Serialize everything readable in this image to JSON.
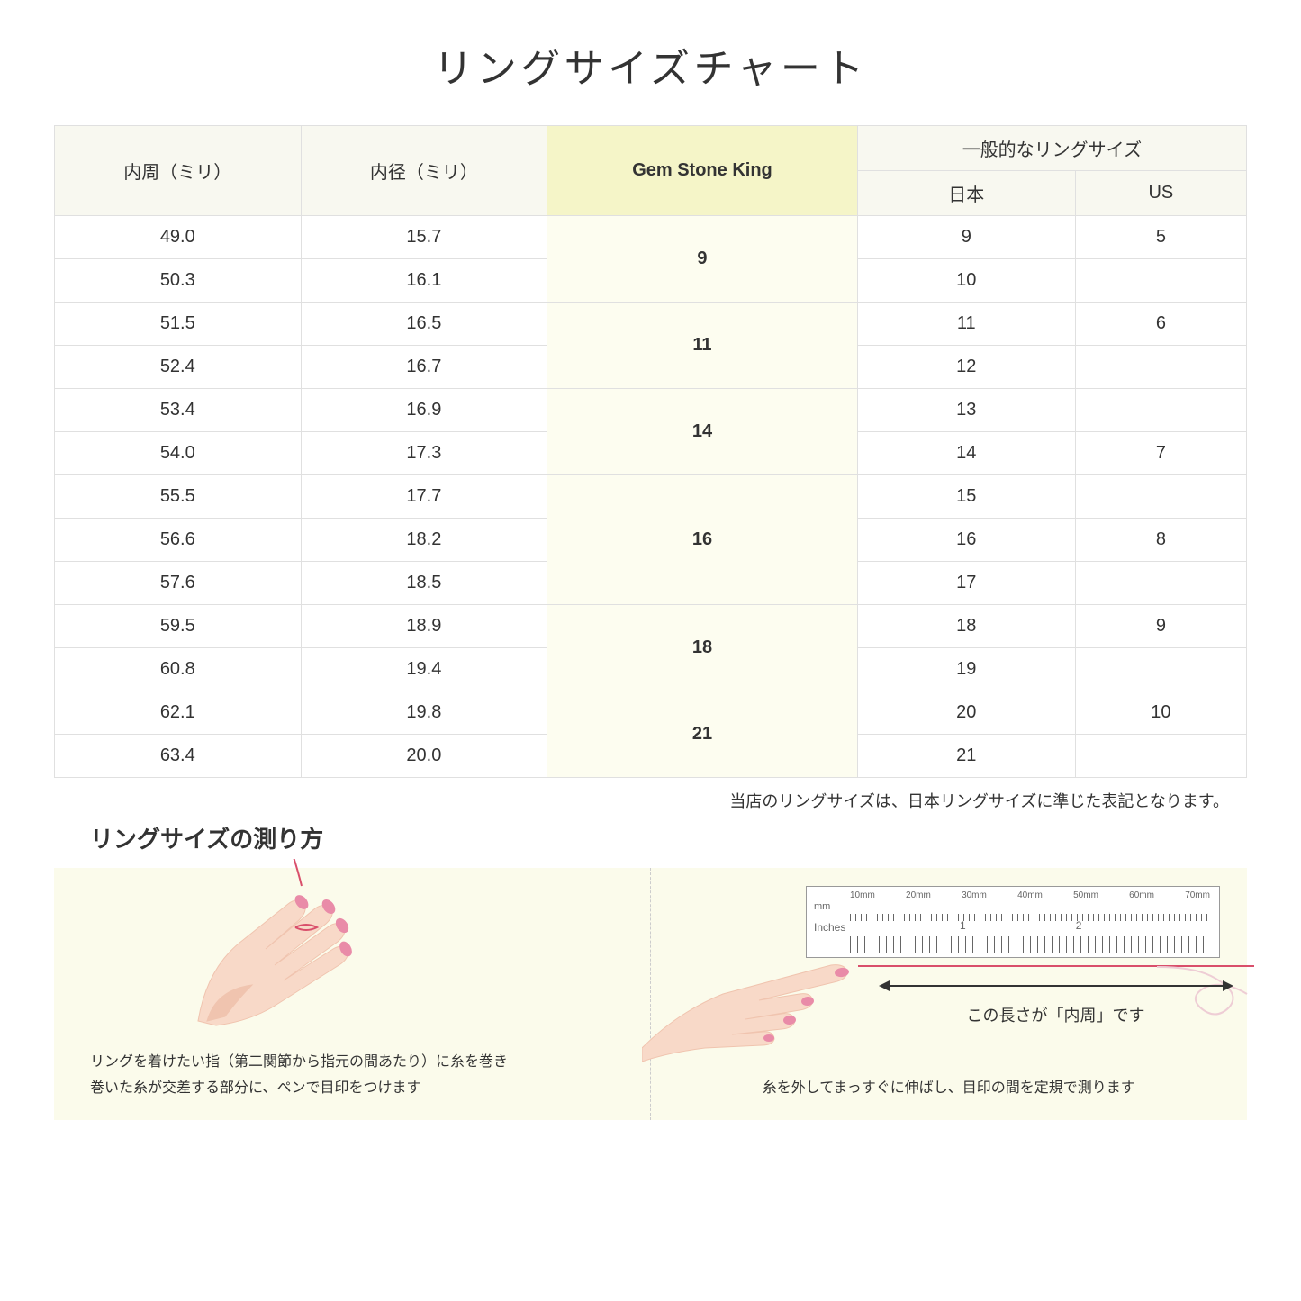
{
  "title": "リングサイズチャート",
  "headers": {
    "circumference": "内周（ミリ）",
    "diameter": "内径（ミリ）",
    "brand": "Gem Stone King",
    "general": "一般的なリングサイズ",
    "japan": "日本",
    "us": "US"
  },
  "rows": [
    {
      "c": "49.0",
      "d": "15.7",
      "g": "9",
      "g_span": 2,
      "jp": "9",
      "us": "5"
    },
    {
      "c": "50.3",
      "d": "16.1",
      "jp": "10",
      "us": ""
    },
    {
      "c": "51.5",
      "d": "16.5",
      "g": "11",
      "g_span": 2,
      "jp": "11",
      "us": "6"
    },
    {
      "c": "52.4",
      "d": "16.7",
      "jp": "12",
      "us": ""
    },
    {
      "c": "53.4",
      "d": "16.9",
      "g": "14",
      "g_span": 2,
      "jp": "13",
      "us": ""
    },
    {
      "c": "54.0",
      "d": "17.3",
      "jp": "14",
      "us": "7"
    },
    {
      "c": "55.5",
      "d": "17.7",
      "g": "16",
      "g_span": 3,
      "jp": "15",
      "us": ""
    },
    {
      "c": "56.6",
      "d": "18.2",
      "jp": "16",
      "us": "8"
    },
    {
      "c": "57.6",
      "d": "18.5",
      "jp": "17",
      "us": ""
    },
    {
      "c": "59.5",
      "d": "18.9",
      "g": "18",
      "g_span": 2,
      "jp": "18",
      "us": "9"
    },
    {
      "c": "60.8",
      "d": "19.4",
      "jp": "19",
      "us": ""
    },
    {
      "c": "62.1",
      "d": "19.8",
      "g": "21",
      "g_span": 2,
      "jp": "20",
      "us": "10"
    },
    {
      "c": "63.4",
      "d": "20.0",
      "jp": "21",
      "us": ""
    }
  ],
  "note": "当店のリングサイズは、日本リングサイズに準じた表記となります。",
  "how_title": "リングサイズの測り方",
  "instructions": {
    "left": "リングを着けたい指（第二関節から指元の間あたり）に糸を巻き\n巻いた糸が交差する部分に、ペンで目印をつけます",
    "right": "糸を外してまっすぐに伸ばし、目印の間を定規で測ります",
    "arrow_label": "この長さが「内周」です"
  },
  "ruler": {
    "mm_label": "mm",
    "inches_label": "Inches",
    "mm_marks": [
      "10mm",
      "20mm",
      "30mm",
      "40mm",
      "50mm",
      "60mm",
      "70mm"
    ],
    "inch_marks": [
      "1",
      "2"
    ]
  },
  "colors": {
    "header_bg": "#f8f8f0",
    "highlight_bg": "#f5f5c8",
    "highlight_cell_bg": "#fdfdf0",
    "border": "#e0e0e0",
    "panel_bg": "#fbfbeb",
    "thread": "#d94f6b",
    "skin": "#f8d9c8",
    "skin_dark": "#f0c4af",
    "nail": "#e98ba8"
  }
}
